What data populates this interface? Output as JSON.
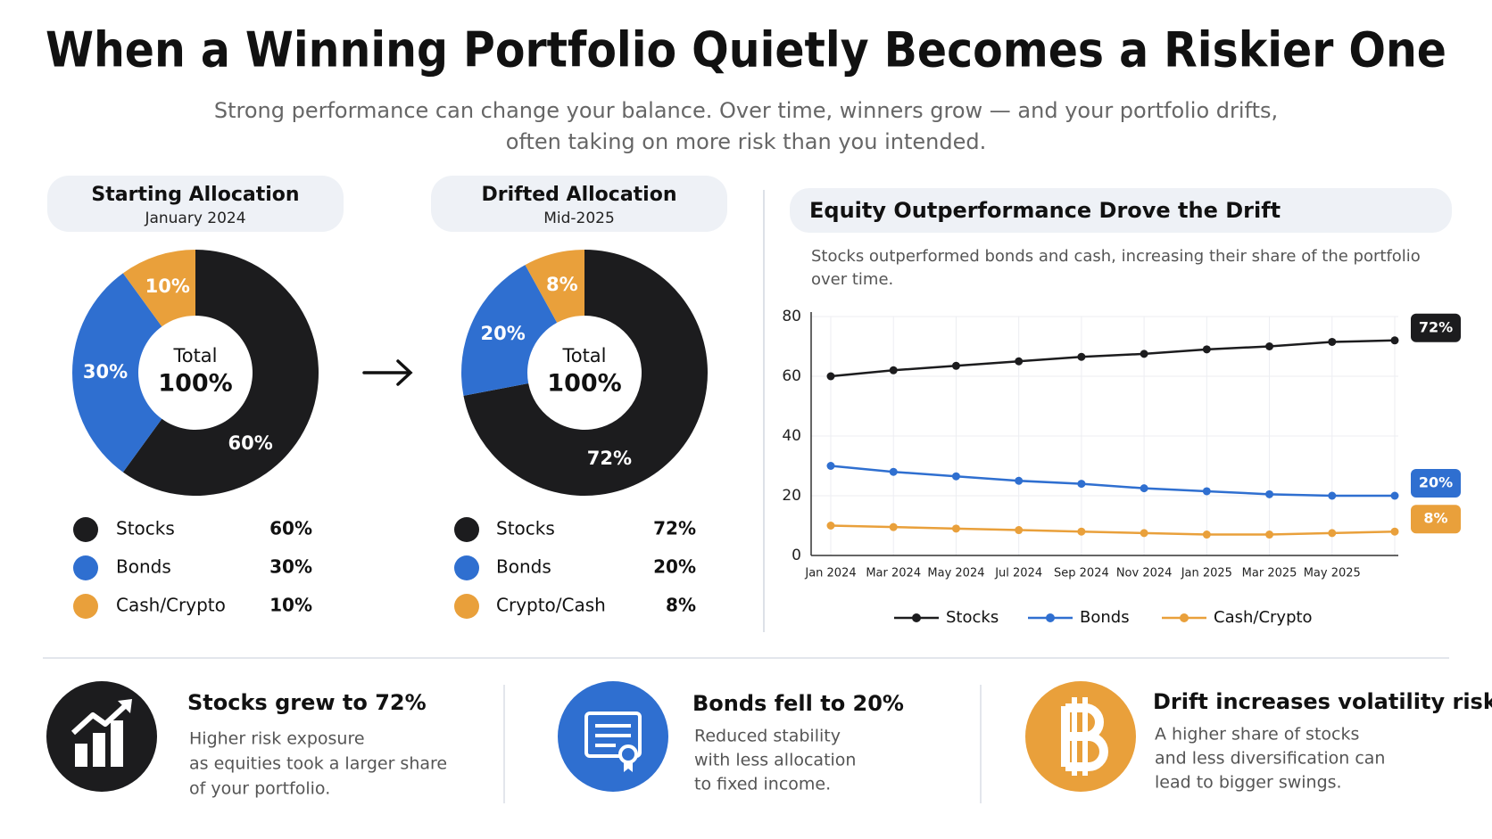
{
  "header": {
    "title": "When a Winning Portfolio Quietly Becomes a Riskier One",
    "subtitle": [
      "Strong performance can change your balance. Over time, winners grow — and your portfolio drifts,",
      "often taking on more risk than you intended."
    ]
  },
  "chart_data": [
    {
      "type": "pie",
      "title": "Starting Allocation",
      "subtitle": "January 2024",
      "center_label": "Total",
      "center_value": "100%",
      "categories": [
        "Stocks",
        "Bonds",
        "Cash/Crypto"
      ],
      "values": [
        60,
        30,
        10
      ],
      "value_labels": [
        "60%",
        "30%",
        "10%"
      ],
      "colors": [
        "#1c1c1e",
        "#2f6fd0",
        "#e9a03b"
      ]
    },
    {
      "type": "pie",
      "title": "Drifted Allocation",
      "subtitle": "Mid-2025",
      "center_label": "Total",
      "center_value": "100%",
      "categories": [
        "Stocks",
        "Bonds",
        "Crypto/Cash"
      ],
      "values": [
        72,
        20,
        8
      ],
      "value_labels": [
        "72%",
        "20%",
        "8%"
      ],
      "colors": [
        "#1c1c1e",
        "#2f6fd0",
        "#e9a03b"
      ]
    },
    {
      "type": "line",
      "title": "Equity Outperformance Drove the Drift",
      "subtitle": [
        "Stocks outperformed bonds and cash, increasing their share of the portfolio",
        "over time."
      ],
      "categories": [
        "Jan 2024",
        "Mar 2024",
        "May 2024",
        "Jul 2024",
        "Sep 2024",
        "Nov 2024",
        "Jan 2025",
        "Mar 2025",
        "May 2025",
        null
      ],
      "series": [
        {
          "name": "Stocks",
          "color": "#1c1c1e",
          "values": [
            60,
            62,
            63.5,
            65,
            66.5,
            67.5,
            69,
            70,
            71.5,
            72
          ],
          "end_label": "72%"
        },
        {
          "name": "Bonds",
          "color": "#2f6fd0",
          "values": [
            30,
            28,
            26.5,
            25,
            24,
            22.5,
            21.5,
            20.5,
            20,
            20
          ],
          "end_label": "20%"
        },
        {
          "name": "Cash/Crypto",
          "color": "#e9a03b",
          "values": [
            10,
            9.5,
            9,
            8.5,
            8,
            7.5,
            7,
            7,
            7.5,
            8
          ],
          "end_label": "8%"
        }
      ],
      "ylim": [
        0,
        80
      ],
      "yticks": [
        0,
        20,
        40,
        60,
        80
      ],
      "grid": true,
      "legend": "bottom"
    }
  ],
  "cards": [
    {
      "title": "Stocks grew to 72%",
      "lines": [
        "Higher risk exposure",
        "as equities took a larger share",
        "of your portfolio."
      ]
    },
    {
      "title": "Bonds fell to 20%",
      "lines": [
        "Reduced stability",
        "with less allocation",
        "to fixed income."
      ]
    },
    {
      "title": "Drift increases volatility risk",
      "lines": [
        "A higher share of stocks",
        "and less diversification can",
        "lead to bigger swings."
      ]
    }
  ]
}
